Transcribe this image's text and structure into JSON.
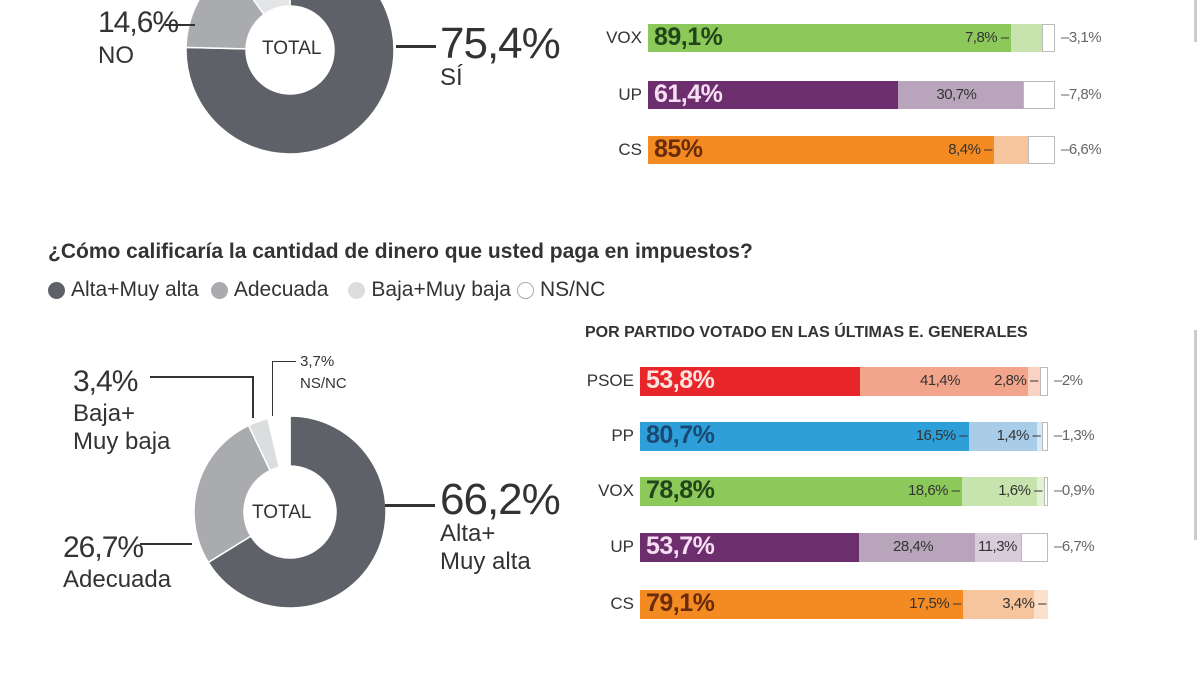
{
  "colors": {
    "dark": "#5e6167",
    "mid": "#a9abae",
    "light": "#dcdddf",
    "white": "#ffffff"
  },
  "chart_data": [
    {
      "type": "pie",
      "title": "",
      "center_label": "TOTAL",
      "slices": [
        {
          "label": "SÍ",
          "value": 75.4,
          "text": "75,4%",
          "color": "#5e6167"
        },
        {
          "label": "NO",
          "value": 14.6,
          "text": "14,6%",
          "color": "#a9abae"
        },
        {
          "label": "",
          "value": 10.0,
          "text": "",
          "color": "#e4e5e7"
        }
      ]
    },
    {
      "type": "bar",
      "stacked": true,
      "orientation": "horizontal",
      "categories": [
        "VOX",
        "UP",
        "CS"
      ],
      "rows": [
        {
          "party": "VOX",
          "values": [
            89.1,
            7.8,
            3.1
          ],
          "texts": [
            "89,1%",
            "7,8%",
            "3,1%"
          ],
          "colors": [
            "#8dc95a",
            "#c8e4ae",
            "#ffffff"
          ],
          "main_text_color": "#22441a"
        },
        {
          "party": "UP",
          "values": [
            61.4,
            30.7,
            7.8
          ],
          "texts": [
            "61,4%",
            "30,7%",
            "7,8%"
          ],
          "colors": [
            "#6d2e6e",
            "#b8a4bb",
            "#ffffff"
          ],
          "main_text_color": "#f6dff3"
        },
        {
          "party": "CS",
          "values": [
            85,
            8.4,
            6.6
          ],
          "texts": [
            "85%",
            "8,4%",
            "6,6%"
          ],
          "colors": [
            "#f38b22",
            "#f6c49d",
            "#ffffff"
          ],
          "main_text_color": "#6a2a0c"
        }
      ]
    },
    {
      "type": "pie",
      "title": "¿Cómo calificaría la cantidad de dinero que usted paga en impuestos?",
      "center_label": "TOTAL",
      "legend": [
        "Alta+Muy alta",
        "Adecuada",
        "Baja+Muy baja",
        "NS/NC"
      ],
      "slices": [
        {
          "label": "Alta+ Muy alta",
          "value": 66.2,
          "text": "66,2%",
          "color": "#5e6167"
        },
        {
          "label": "Adecuada",
          "value": 26.7,
          "text": "26,7%",
          "color": "#a9abae"
        },
        {
          "label": "Baja+ Muy baja",
          "value": 3.4,
          "text": "3,4%",
          "color": "#dcdddf"
        },
        {
          "label": "NS/NC",
          "value": 3.7,
          "text": "3,7%",
          "color": "#ffffff"
        }
      ]
    },
    {
      "type": "bar",
      "stacked": true,
      "orientation": "horizontal",
      "title": "POR PARTIDO VOTADO EN LAS ÚLTIMAS E. GENERALES",
      "categories": [
        "PSOE",
        "PP",
        "VOX",
        "UP",
        "CS"
      ],
      "rows": [
        {
          "party": "PSOE",
          "values": [
            53.8,
            41.4,
            2.8,
            2
          ],
          "texts": [
            "53,8%",
            "41,4%",
            "2,8%",
            "2%"
          ],
          "colors": [
            "#e8262a",
            "#f3a58b",
            "#f9d2c3",
            "#ffffff"
          ],
          "main_text_color": "#fde3e0"
        },
        {
          "party": "PP",
          "values": [
            80.7,
            16.5,
            1.4,
            1.3
          ],
          "texts": [
            "80,7%",
            "16,5%",
            "1,4%",
            "1,3%"
          ],
          "colors": [
            "#2e9fd8",
            "#a9cce8",
            "#d8e8f4",
            "#ffffff"
          ],
          "main_text_color": "#1a4a74"
        },
        {
          "party": "VOX",
          "values": [
            78.8,
            18.6,
            1.6,
            0.9
          ],
          "texts": [
            "78,8%",
            "18,6%",
            "1,6%",
            "0,9%"
          ],
          "colors": [
            "#8dc95a",
            "#c8e4ae",
            "#e3f1d5",
            "#ffffff"
          ],
          "main_text_color": "#22441a"
        },
        {
          "party": "UP",
          "values": [
            53.7,
            28.4,
            11.3,
            6.7
          ],
          "texts": [
            "53,7%",
            "28,4%",
            "11,3%",
            "6,7%"
          ],
          "colors": [
            "#6d2e6e",
            "#b8a4bb",
            "#d8ccda",
            "#ffffff"
          ],
          "main_text_color": "#f6dff3"
        },
        {
          "party": "CS",
          "values": [
            79.1,
            17.5,
            3.4
          ],
          "texts": [
            "79,1%",
            "17,5%",
            "3,4%"
          ],
          "colors": [
            "#f38b22",
            "#f6c49d",
            "#fbe0cc"
          ],
          "main_text_color": "#6a2a0c"
        }
      ]
    }
  ],
  "labels": {
    "top_no_pct": "14,6%",
    "top_no": "NO",
    "top_si_pct": "75,4%",
    "top_si": "SÍ",
    "b_baja_pct": "3,4%",
    "b_baja_1": "Baja+",
    "b_baja_2": "Muy baja",
    "b_ns_pct": "3,7%",
    "b_ns": "NS/NC",
    "b_alta_pct": "66,2%",
    "b_alta_1": "Alta+",
    "b_alta_2": "Muy alta",
    "b_adec_pct": "26,7%",
    "b_adec": "Adecuada",
    "total": "TOTAL"
  }
}
